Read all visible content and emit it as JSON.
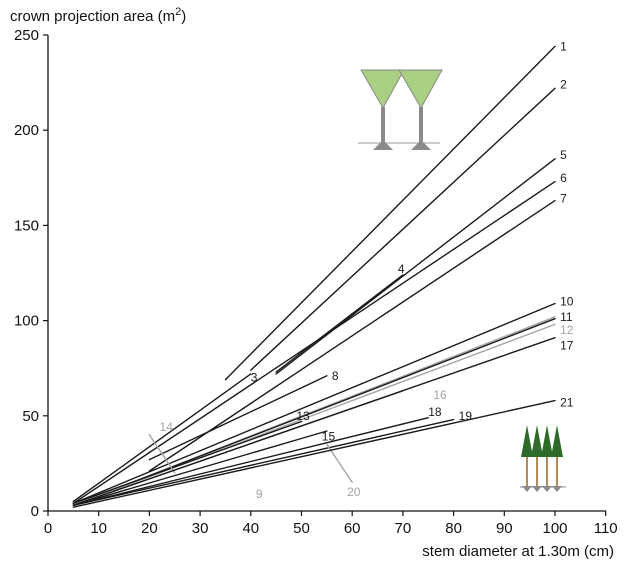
{
  "chart_data": {
    "type": "line",
    "title": "",
    "ylabel": "crown projection area (m",
    "ylabel_sup": "2",
    "ylabel_close": ")",
    "xlabel": "stem diameter at 1.30m (cm)",
    "xlim": [
      0,
      110
    ],
    "ylim": [
      0,
      250
    ],
    "xticks": [
      0,
      10,
      20,
      30,
      40,
      50,
      60,
      70,
      80,
      90,
      100,
      110
    ],
    "yticks": [
      0,
      50,
      100,
      150,
      200,
      250
    ],
    "grid": false,
    "legend": "none",
    "colors": {
      "black": "#1a1a1a",
      "gray": "#a3a3a3",
      "cone_green": "#a9cf82",
      "stem_gray": "#8a8a8a",
      "tree_green": "#2e6b2a"
    },
    "series": [
      {
        "label": "1",
        "color": "black",
        "x": [
          35,
          100
        ],
        "y": [
          69,
          244
        ],
        "label_pos": [
          101,
          244
        ]
      },
      {
        "label": "2",
        "color": "black",
        "x": [
          40,
          100
        ],
        "y": [
          74,
          222
        ],
        "label_pos": [
          101,
          224
        ]
      },
      {
        "label": "3",
        "color": "black",
        "x": [
          5,
          40
        ],
        "y": [
          5,
          72
        ],
        "label_pos": [
          40,
          70
        ]
      },
      {
        "label": "4",
        "color": "black",
        "x": [
          45,
          70
        ],
        "y": [
          73,
          124
        ],
        "label_pos": [
          69,
          127
        ]
      },
      {
        "label": "5",
        "color": "black",
        "x": [
          45,
          100
        ],
        "y": [
          72,
          185
        ],
        "label_pos": [
          101,
          187
        ]
      },
      {
        "label": "6",
        "color": "black",
        "x": [
          5,
          100
        ],
        "y": [
          4,
          173
        ],
        "label_pos": [
          101,
          175
        ]
      },
      {
        "label": "7",
        "color": "black",
        "x": [
          20,
          100
        ],
        "y": [
          21,
          163
        ],
        "label_pos": [
          101,
          164
        ]
      },
      {
        "label": "8",
        "color": "black",
        "x": [
          20,
          55
        ],
        "y": [
          27,
          71
        ],
        "label_pos": [
          56,
          71
        ]
      },
      {
        "label": "9",
        "color": "gray",
        "x": [
          5,
          100
        ],
        "y": [
          3,
          102
        ],
        "label_pos": [
          41,
          9
        ]
      },
      {
        "label": "10",
        "color": "black",
        "x": [
          5,
          100
        ],
        "y": [
          4,
          109
        ],
        "label_pos": [
          101,
          110
        ]
      },
      {
        "label": "11",
        "color": "black",
        "x": [
          5,
          100
        ],
        "y": [
          3,
          101
        ],
        "label_pos": [
          101,
          102
        ]
      },
      {
        "label": "12",
        "color": "gray",
        "x": [
          5,
          100
        ],
        "y": [
          3,
          98
        ],
        "label_pos": [
          101,
          95
        ]
      },
      {
        "label": "13",
        "color": "black",
        "x": [
          5,
          50
        ],
        "y": [
          4,
          47
        ],
        "label_pos": [
          49,
          50
        ]
      },
      {
        "label": "14",
        "color": "gray",
        "x": [
          20,
          25
        ],
        "y": [
          40,
          20
        ],
        "label_pos": [
          22,
          44
        ]
      },
      {
        "label": "15",
        "color": "black",
        "x": [
          5,
          55
        ],
        "y": [
          3,
          42
        ],
        "label_pos": [
          54,
          39
        ]
      },
      {
        "label": "16",
        "color": "gray",
        "x": [
          5,
          70
        ],
        "y": [
          3,
          63
        ],
        "label_pos": [
          76,
          61
        ]
      },
      {
        "label": "17",
        "color": "black",
        "x": [
          5,
          100
        ],
        "y": [
          3,
          91
        ],
        "label_pos": [
          101,
          87
        ]
      },
      {
        "label": "18",
        "color": "black",
        "x": [
          5,
          75
        ],
        "y": [
          3,
          49
        ],
        "label_pos": [
          75,
          52
        ]
      },
      {
        "label": "19",
        "color": "black",
        "x": [
          5,
          80
        ],
        "y": [
          3,
          48
        ],
        "label_pos": [
          81,
          50
        ]
      },
      {
        "label": "20",
        "color": "gray",
        "x": [
          55,
          60
        ],
        "y": [
          35,
          15
        ],
        "label_pos": [
          59,
          10
        ]
      },
      {
        "label": "21",
        "color": "black",
        "x": [
          5,
          100
        ],
        "y": [
          2,
          58
        ],
        "label_pos": [
          101,
          57
        ]
      }
    ]
  }
}
